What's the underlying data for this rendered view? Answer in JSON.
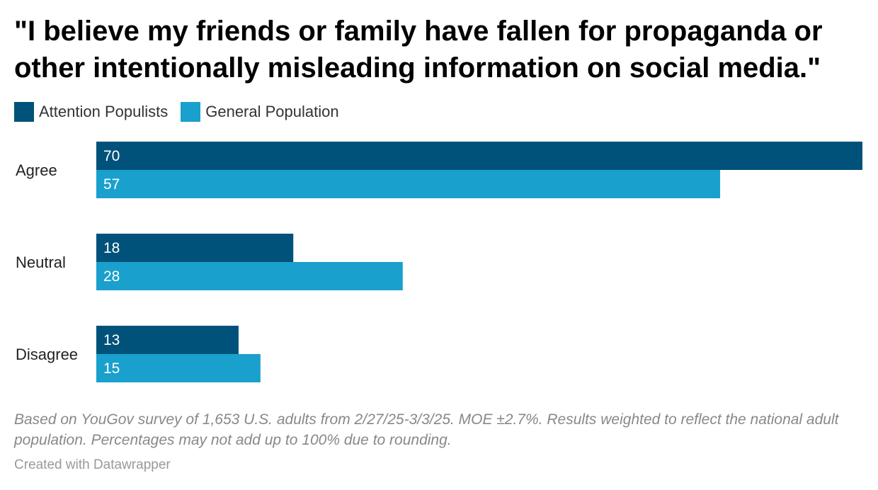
{
  "title": "\"I believe my friends or family have fallen for propaganda or other intentionally misleading information on social media.\"",
  "legend": {
    "items": [
      {
        "label": "Attention Populists",
        "color": "#00527a"
      },
      {
        "label": "General Population",
        "color": "#1aa0cc"
      }
    ]
  },
  "chart_data": {
    "type": "bar",
    "orientation": "horizontal",
    "categories": [
      "Agree",
      "Neutral",
      "Disagree"
    ],
    "series": [
      {
        "name": "Attention Populists",
        "color": "#00527a",
        "values": [
          70,
          18,
          13
        ]
      },
      {
        "name": "General Population",
        "color": "#1aa0cc",
        "values": [
          57,
          28,
          15
        ]
      }
    ],
    "xlim": [
      0,
      70
    ],
    "grid": false,
    "legend_position": "top-left"
  },
  "notes": "Based on YouGov survey of 1,653 U.S. adults from 2/27/25-3/3/25. MOE ±2.7%. Results weighted to reflect the national adult population. Percentages may not add up to 100% due to rounding.",
  "credit": "Created with Datawrapper"
}
